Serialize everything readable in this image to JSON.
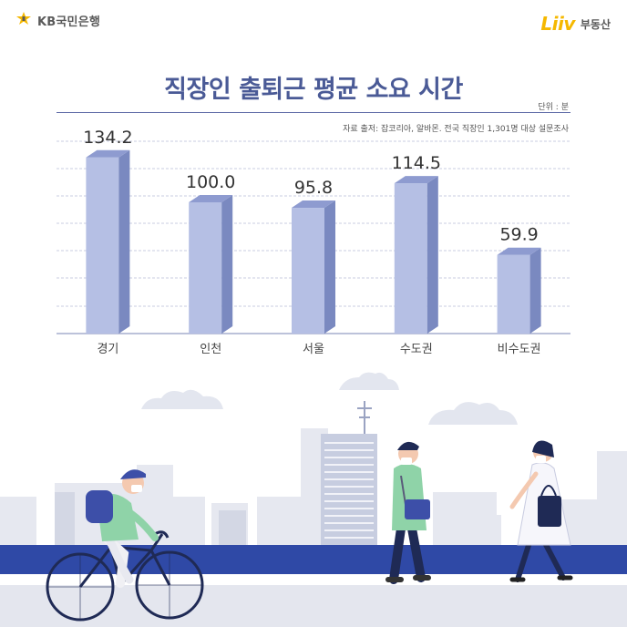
{
  "brand": {
    "kb": "KB국민은행",
    "liiv": "Liiv",
    "liiv_sub": "부동산"
  },
  "chart_data": {
    "type": "bar",
    "title": "직장인 출퇴근 평균 소요 시간",
    "unit": "단위 : 분",
    "source": "자료 출저: 잡코리아, 알바몬. 전국 직장인 1,301명 대상 설문조사",
    "categories": [
      "경기",
      "인천",
      "서울",
      "수도권",
      "비수도권"
    ],
    "values": [
      134.2,
      100.0,
      95.8,
      114.5,
      59.9
    ],
    "value_labels": [
      "134.2",
      "100.0",
      "95.8",
      "114.5",
      "59.9"
    ],
    "ylim": [
      0,
      150
    ],
    "grid": true,
    "colors": {
      "bar_front": "#b5bfe4",
      "bar_side": "#7a89c0",
      "bar_top": "#8e9bd0",
      "title": "#4a5a96",
      "road": "#2f49a6"
    }
  }
}
